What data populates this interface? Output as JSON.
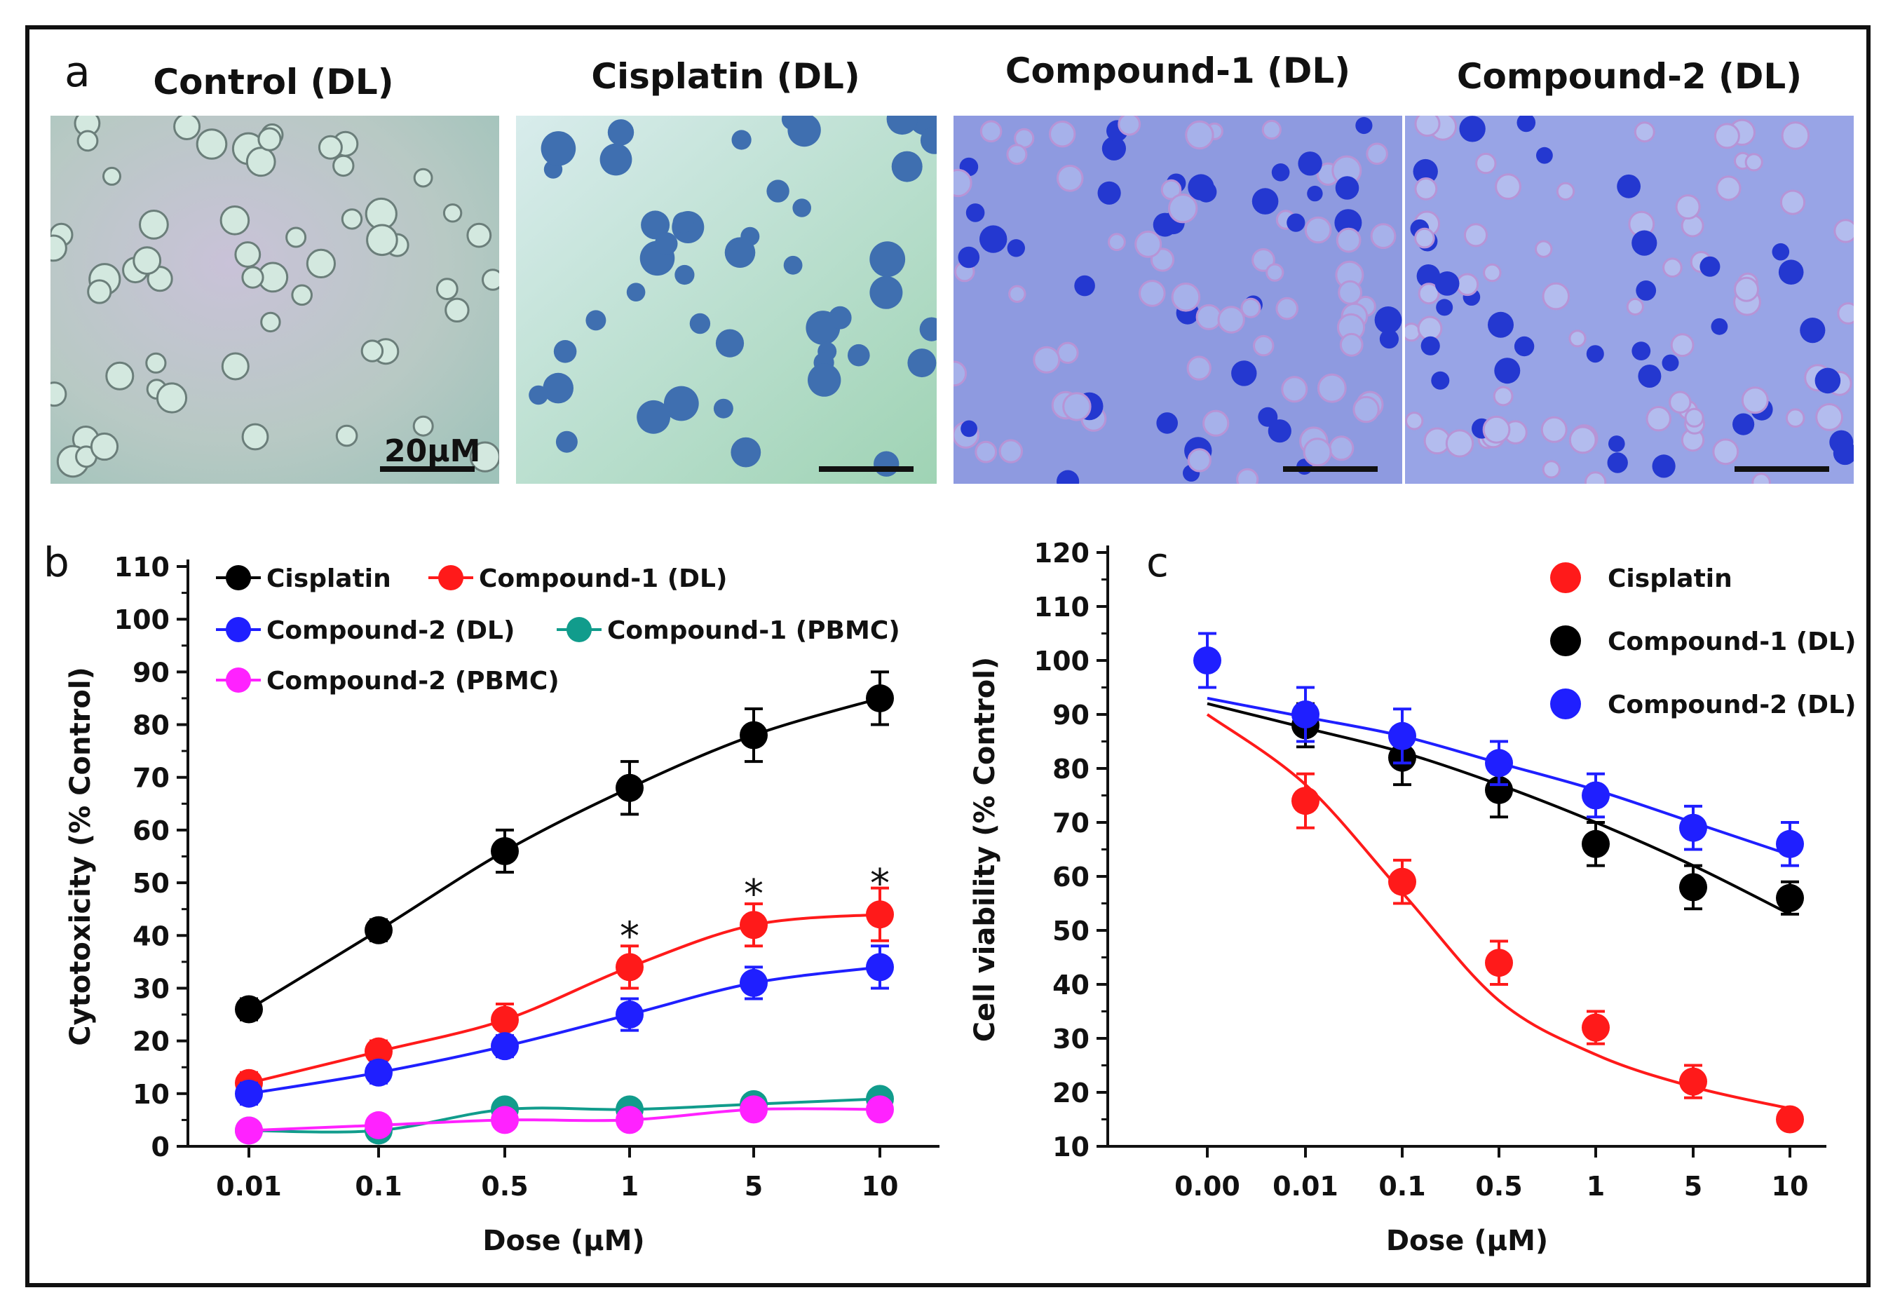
{
  "panel_a": {
    "letter": "a",
    "titles": [
      "Control (DL)",
      "Cisplatin (DL)",
      "Compound-1 (DL)",
      "Compound-2 (DL)"
    ],
    "scale_bar_label": "20μM"
  },
  "chart_data": [
    {
      "type": "line",
      "panel_label": "b",
      "title": "",
      "xlabel": "Dose (μM)",
      "ylabel": "Cytotoxicity (% Control)",
      "categories": [
        "0.01",
        "0.1",
        "0.5",
        "1",
        "5",
        "10"
      ],
      "ylim": [
        0,
        110
      ],
      "yticks": [
        0,
        10,
        20,
        30,
        40,
        50,
        60,
        70,
        80,
        90,
        100,
        110
      ],
      "legend": "top-left",
      "series": [
        {
          "name": "Cisplatin",
          "color": "#000000",
          "values": [
            26,
            41,
            56,
            68,
            78,
            85
          ],
          "errors": [
            2,
            2,
            4,
            5,
            5,
            5
          ]
        },
        {
          "name": "Compound-1 (DL)",
          "color": "#ff1a1a",
          "values": [
            12,
            18,
            24,
            34,
            42,
            44
          ],
          "errors": [
            2,
            2,
            3,
            4,
            4,
            5
          ]
        },
        {
          "name": "Compound-2 (DL)",
          "color": "#1f1fff",
          "values": [
            10,
            14,
            19,
            25,
            31,
            34
          ],
          "errors": [
            2,
            2,
            2,
            3,
            3,
            4
          ]
        },
        {
          "name": "Compound-1 (PBMC)",
          "color": "#119c8c",
          "values": [
            3,
            3,
            7,
            7,
            8,
            9
          ],
          "errors": [
            1,
            1,
            1,
            1,
            1,
            1
          ]
        },
        {
          "name": "Compound-2 (PBMC)",
          "color": "#ff22ff",
          "values": [
            3,
            4,
            5,
            5,
            7,
            7
          ],
          "errors": [
            1,
            1,
            1,
            1,
            1,
            1
          ]
        }
      ],
      "annotations": [
        {
          "text": "*",
          "category": "1",
          "value": 40
        },
        {
          "text": "*",
          "category": "5",
          "value": 48
        },
        {
          "text": "*",
          "category": "10",
          "value": 50
        }
      ]
    },
    {
      "type": "scatter",
      "panel_label": "c",
      "title": "",
      "xlabel": "Dose (μM)",
      "ylabel": "Cell viability (% Control)",
      "categories": [
        "0.00",
        "0.01",
        "0.1",
        "0.5",
        "1",
        "5",
        "10"
      ],
      "ylim": [
        10,
        120
      ],
      "yticks": [
        10,
        20,
        30,
        40,
        50,
        60,
        70,
        80,
        90,
        100,
        110,
        120
      ],
      "legend": "top-right",
      "series": [
        {
          "name": "Cisplatin",
          "color": "#ff1a1a",
          "values": [
            null,
            74,
            59,
            44,
            32,
            22,
            15
          ],
          "errors": [
            null,
            5,
            4,
            4,
            3,
            3,
            1
          ],
          "fit": [
            90,
            77,
            57,
            37,
            27,
            21,
            17
          ]
        },
        {
          "name": "Compound-1 (DL)",
          "color": "#000000",
          "values": [
            null,
            88,
            82,
            76,
            66,
            58,
            56
          ],
          "errors": [
            null,
            4,
            5,
            5,
            4,
            4,
            3
          ],
          "fit": [
            92,
            87.5,
            83,
            77,
            70,
            62,
            53
          ]
        },
        {
          "name": "Compound-2 (DL)",
          "color": "#1f1fff",
          "values": [
            100,
            90,
            86,
            81,
            75,
            69,
            66
          ],
          "errors": [
            5,
            5,
            5,
            4,
            4,
            4,
            4
          ],
          "fit": [
            93,
            89.5,
            86,
            81,
            76,
            70,
            64
          ]
        }
      ]
    }
  ]
}
